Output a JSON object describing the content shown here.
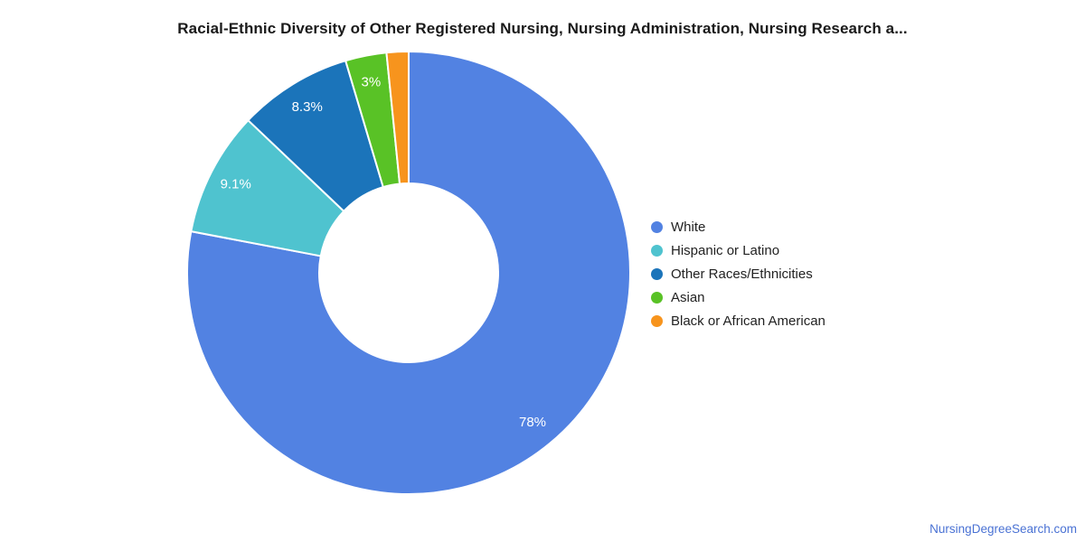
{
  "watermark": "NursingDegreeSearch.com",
  "colors": {
    "background": "#ffffff",
    "title_text": "#1a1a1a",
    "legend_text": "#222222",
    "slice_label_text": "#ffffff",
    "slice_border": "#ffffff",
    "watermark_text": "#4a72d4"
  },
  "chart_data": {
    "type": "pie",
    "donut": true,
    "title": "Racial-Ethnic Diversity of Other Registered Nursing, Nursing Administration, Nursing Research a...",
    "legend_position": "right",
    "start_angle_deg": 0,
    "direction": "clockwise",
    "total": 100,
    "series": [
      {
        "name": "White",
        "value": 78,
        "label": "78%",
        "color": "#5282e2"
      },
      {
        "name": "Hispanic or Latino",
        "value": 9.1,
        "label": "9.1%",
        "color": "#4fc3cf"
      },
      {
        "name": "Other Races/Ethnicities",
        "value": 8.3,
        "label": "8.3%",
        "color": "#1b74ba"
      },
      {
        "name": "Asian",
        "value": 3,
        "label": "3%",
        "color": "#59c226"
      },
      {
        "name": "Black or African American",
        "value": 1.6,
        "label": "",
        "color": "#f7941d"
      }
    ]
  }
}
